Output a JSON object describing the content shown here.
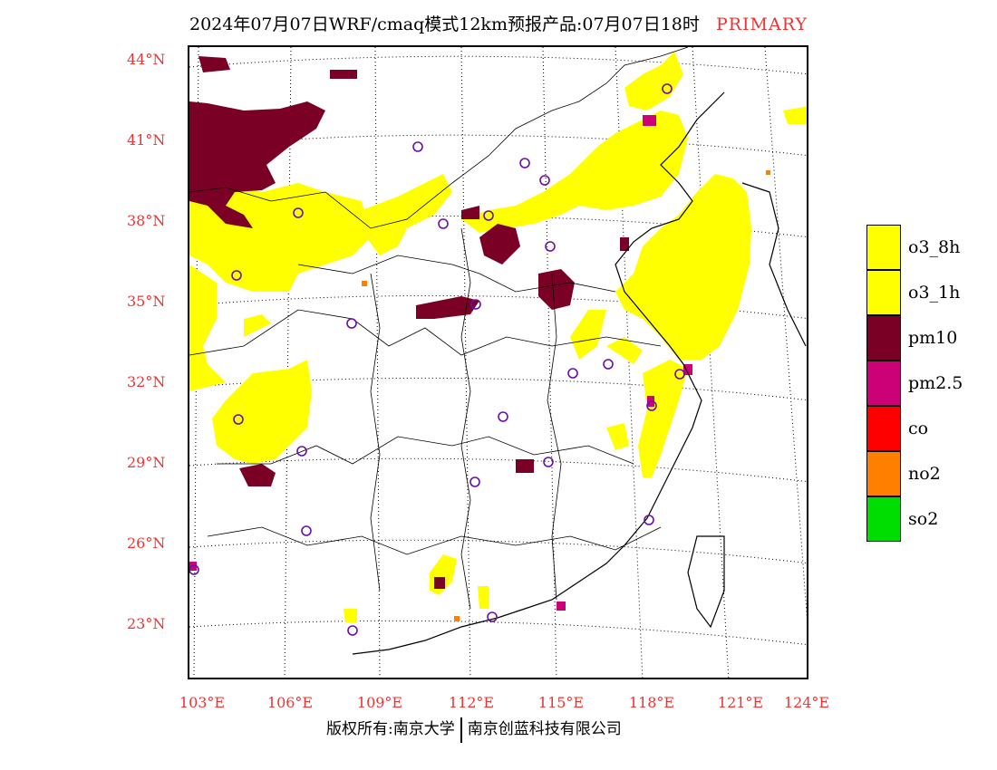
{
  "title": {
    "main": "2024年07月07日WRF/cmaq模式12km预报产品:07月07日18时",
    "tag": "PRIMARY"
  },
  "axes": {
    "lat_labels": [
      "44°N",
      "41°N",
      "38°N",
      "35°N",
      "32°N",
      "29°N",
      "26°N",
      "23°N"
    ],
    "lon_labels": [
      "103°E",
      "106°E",
      "109°E",
      "112°E",
      "115°E",
      "118°E",
      "121°E",
      "124°E"
    ]
  },
  "legend": [
    {
      "label": "o3_8h",
      "color": "#ffff00"
    },
    {
      "label": "o3_1h",
      "color": "#ffff00"
    },
    {
      "label": "pm10",
      "color": "#7a0026"
    },
    {
      "label": "pm2.5",
      "color": "#cc0077"
    },
    {
      "label": "co",
      "color": "#ff0000"
    },
    {
      "label": "no2",
      "color": "#ff7f00"
    },
    {
      "label": "so2",
      "color": "#00dd00"
    }
  ],
  "footer": {
    "left": "版权所有:南京大学",
    "right": "南京创蓝科技有限公司"
  }
}
